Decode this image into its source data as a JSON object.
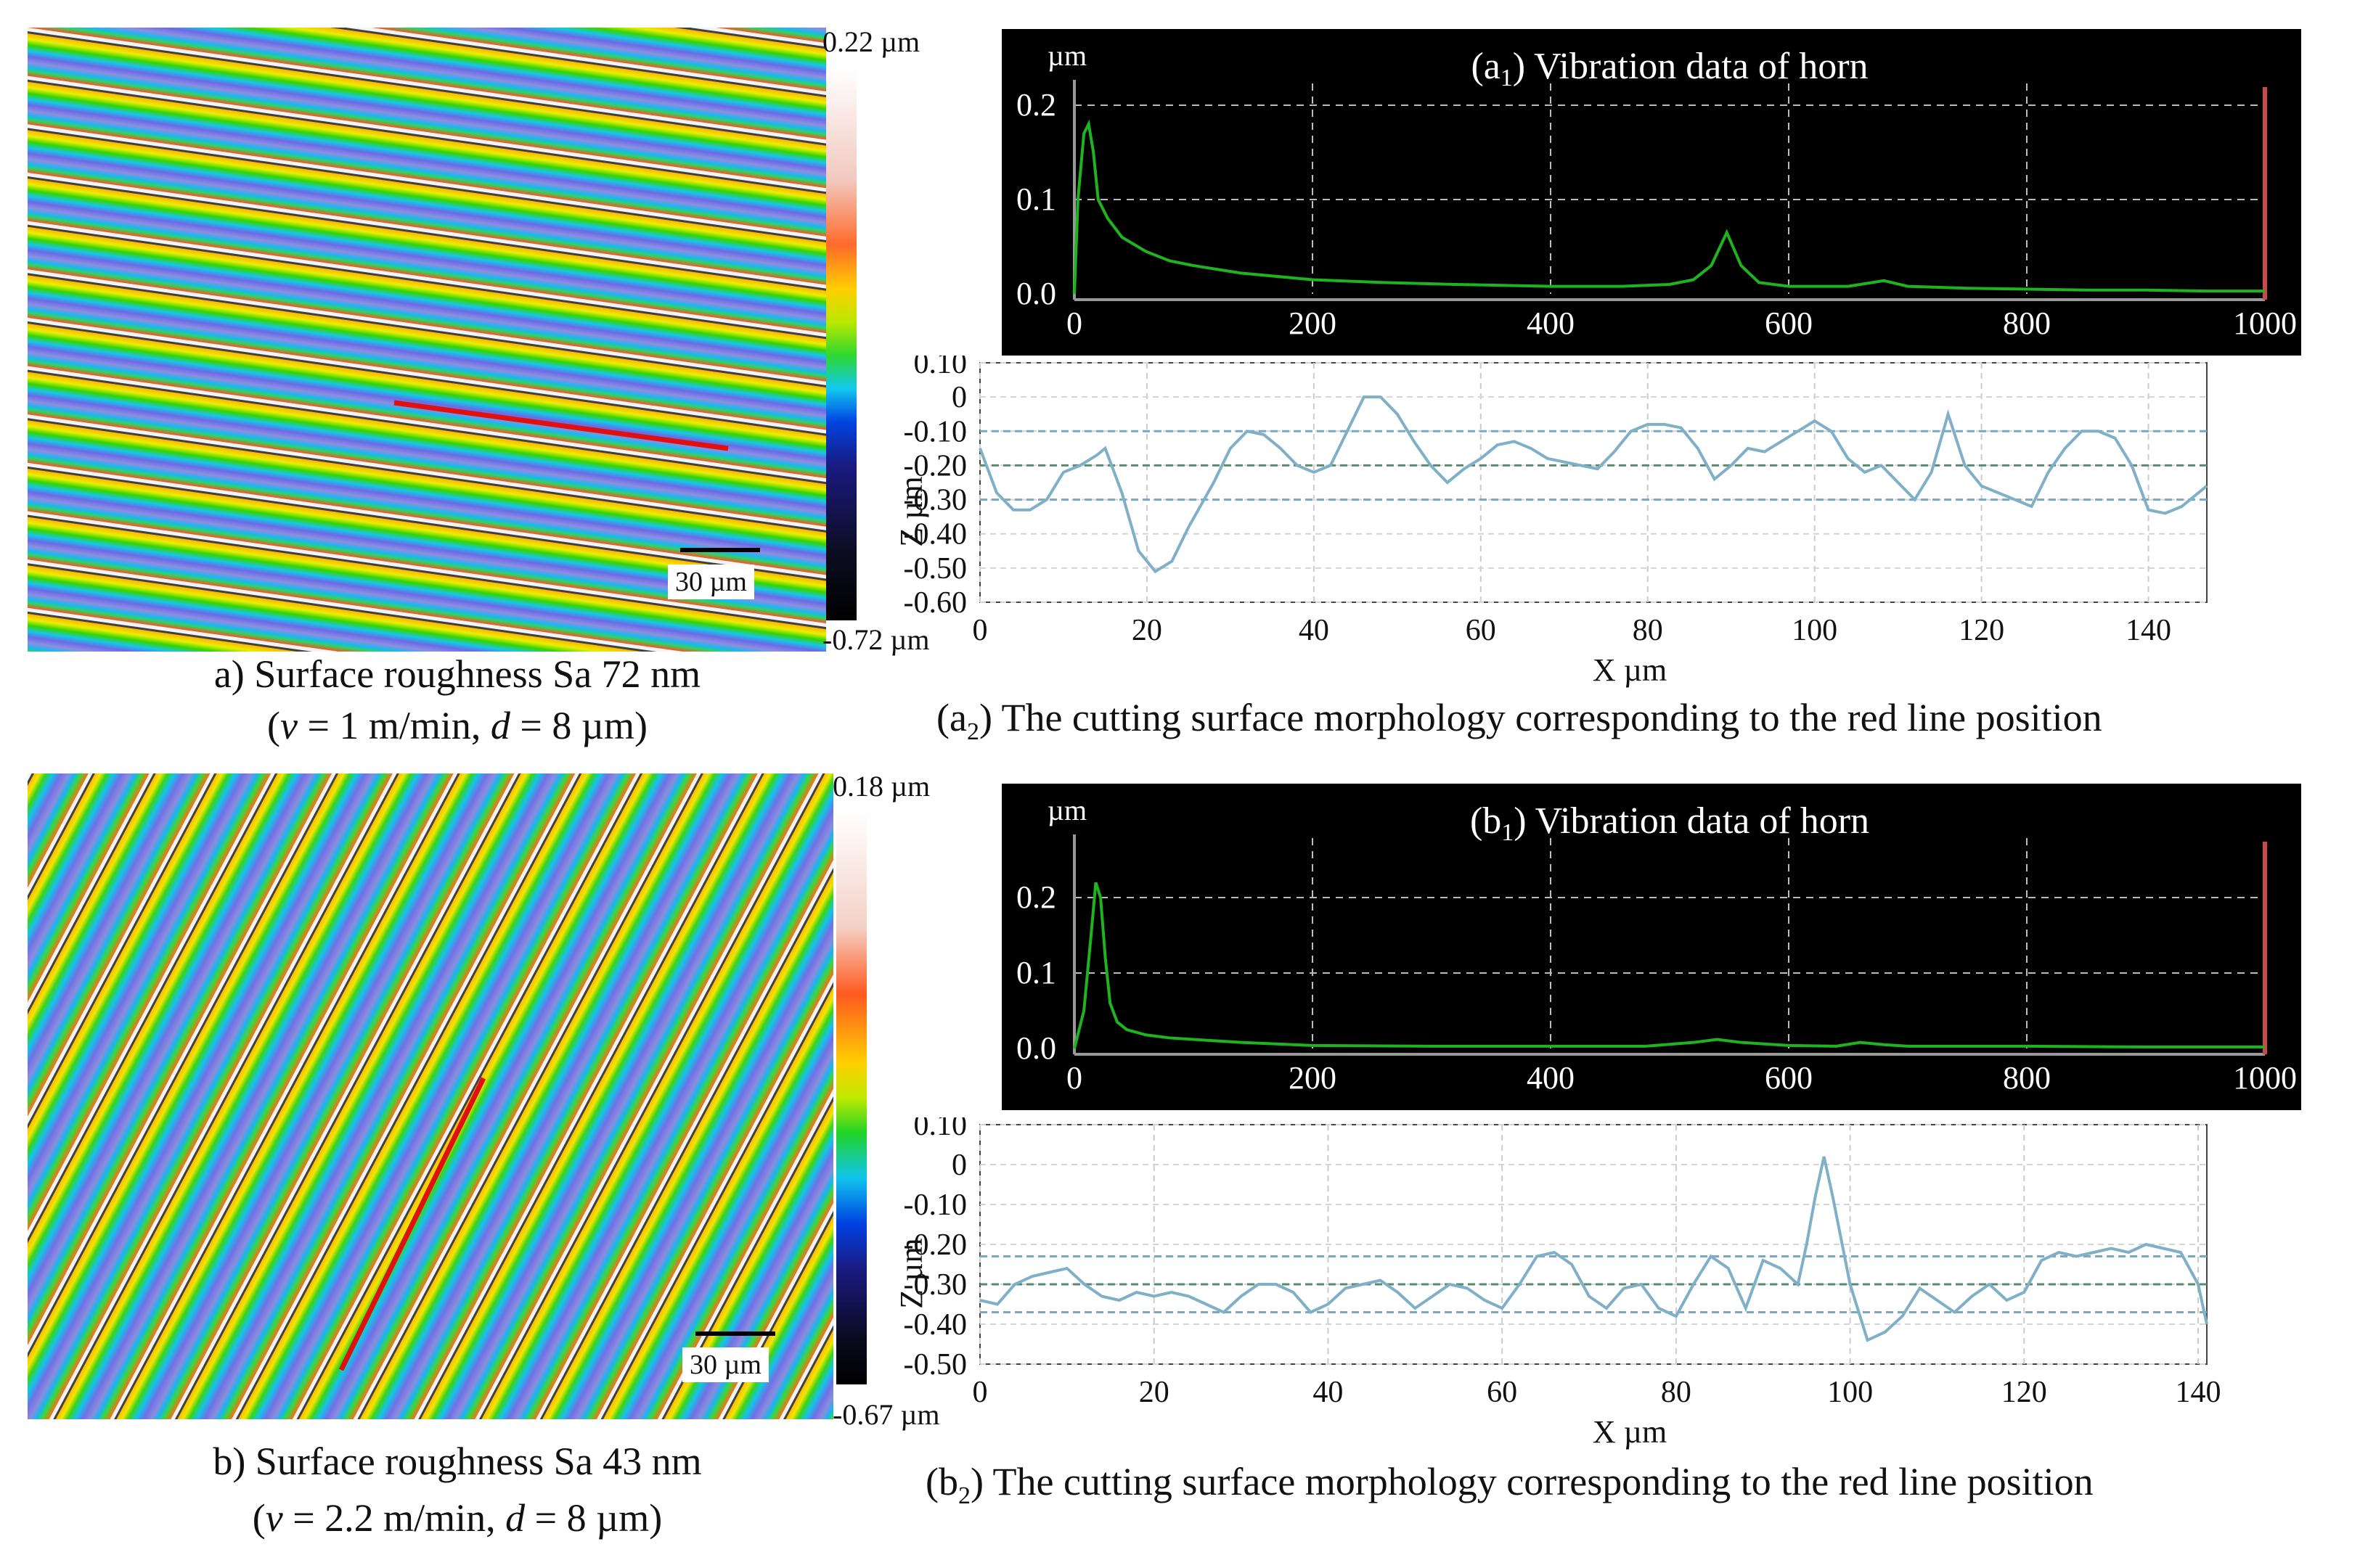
{
  "panel_a": {
    "colorbar_max": "0.22 µm",
    "colorbar_min": "-0.72 µm",
    "scale_label": "30 µm",
    "caption_line1": "a) Surface roughness Sa 72 nm",
    "caption_line2": "(v = 1 m/min, d = 8 µm)"
  },
  "panel_b": {
    "colorbar_max": "0.18 µm",
    "colorbar_min": "-0.67 µm",
    "scale_label": "30 µm",
    "caption_line1": "b) Surface roughness Sa 43 nm",
    "caption_line2": "(v = 2.2 m/min, d = 8 µm)"
  },
  "caption_a2": "(a2) The cutting surface morphology corresponding to the red line position",
  "caption_b2": "(b2) The cutting surface morphology corresponding to the red line position",
  "chart_data": [
    {
      "id": "a1",
      "type": "line",
      "title": "(a1) Vibration data of horn",
      "ylabel": "µm",
      "x_ticks": [
        "0",
        "200",
        "400",
        "600",
        "800",
        "1000"
      ],
      "y_ticks": [
        "0.0",
        "0.1",
        "0.2"
      ],
      "xlim": [
        0,
        1000
      ],
      "ylim": [
        0,
        0.2
      ],
      "background": "#000000",
      "line_color": "#1fb41f",
      "x": [
        0,
        3,
        8,
        12,
        16,
        20,
        28,
        40,
        60,
        80,
        100,
        140,
        200,
        260,
        320,
        400,
        460,
        500,
        520,
        535,
        548,
        560,
        575,
        600,
        650,
        680,
        700,
        750,
        800,
        850,
        900,
        950,
        1000
      ],
      "y": [
        0.0,
        0.1,
        0.17,
        0.18,
        0.15,
        0.1,
        0.08,
        0.06,
        0.045,
        0.035,
        0.03,
        0.022,
        0.015,
        0.012,
        0.01,
        0.008,
        0.008,
        0.01,
        0.015,
        0.03,
        0.065,
        0.03,
        0.012,
        0.008,
        0.008,
        0.014,
        0.008,
        0.006,
        0.005,
        0.004,
        0.004,
        0.003,
        0.003
      ]
    },
    {
      "id": "a2",
      "type": "line",
      "xlabel": "X µm",
      "ylabel": "Z µm",
      "x_ticks": [
        "0",
        "20",
        "40",
        "60",
        "80",
        "100",
        "120",
        "140"
      ],
      "y_ticks": [
        "0.10",
        "0",
        "-0.10",
        "-0.20",
        "-0.30",
        "-0.40",
        "-0.50",
        "-0.60"
      ],
      "xlim": [
        0,
        147
      ],
      "ylim": [
        -0.6,
        0.1
      ],
      "line_color": "#7fb0c8",
      "x": [
        0,
        2,
        4,
        6,
        8,
        10,
        12,
        14,
        15,
        17,
        19,
        21,
        23,
        25,
        28,
        30,
        32,
        34,
        36,
        38,
        40,
        42,
        44,
        46,
        48,
        50,
        52,
        54,
        56,
        58,
        60,
        62,
        64,
        66,
        68,
        70,
        72,
        74,
        76,
        78,
        80,
        82,
        84,
        86,
        88,
        90,
        92,
        94,
        96,
        98,
        100,
        102,
        104,
        106,
        108,
        110,
        112,
        114,
        116,
        118,
        120,
        122,
        124,
        126,
        128,
        130,
        132,
        134,
        136,
        138,
        140,
        142,
        144,
        147
      ],
      "y": [
        -0.15,
        -0.28,
        -0.33,
        -0.33,
        -0.3,
        -0.22,
        -0.2,
        -0.17,
        -0.15,
        -0.28,
        -0.45,
        -0.51,
        -0.48,
        -0.38,
        -0.25,
        -0.15,
        -0.1,
        -0.11,
        -0.15,
        -0.2,
        -0.22,
        -0.2,
        -0.1,
        0.0,
        0.0,
        -0.05,
        -0.13,
        -0.2,
        -0.25,
        -0.21,
        -0.18,
        -0.14,
        -0.13,
        -0.15,
        -0.18,
        -0.19,
        -0.2,
        -0.21,
        -0.16,
        -0.1,
        -0.08,
        -0.08,
        -0.09,
        -0.15,
        -0.24,
        -0.2,
        -0.15,
        -0.16,
        -0.13,
        -0.1,
        -0.07,
        -0.1,
        -0.18,
        -0.22,
        -0.2,
        -0.25,
        -0.3,
        -0.22,
        -0.05,
        -0.2,
        -0.26,
        -0.28,
        -0.3,
        -0.32,
        -0.22,
        -0.15,
        -0.1,
        -0.1,
        -0.12,
        -0.2,
        -0.33,
        -0.34,
        -0.32,
        -0.26
      ],
      "hlines": [
        -0.1,
        -0.2,
        -0.3
      ]
    },
    {
      "id": "b1",
      "type": "line",
      "title": "(b1) Vibration data of horn",
      "ylabel": "µm",
      "x_ticks": [
        "0",
        "200",
        "400",
        "600",
        "800",
        "1000"
      ],
      "y_ticks": [
        "0.0",
        "0.1",
        "0.2"
      ],
      "xlim": [
        0,
        1000
      ],
      "ylim": [
        0,
        0.25
      ],
      "background": "#000000",
      "line_color": "#1fb41f",
      "x": [
        0,
        8,
        14,
        18,
        22,
        26,
        30,
        36,
        44,
        60,
        80,
        100,
        140,
        200,
        300,
        400,
        480,
        520,
        540,
        560,
        600,
        640,
        660,
        680,
        700,
        760,
        800,
        900,
        1000
      ],
      "y": [
        0.0,
        0.05,
        0.15,
        0.22,
        0.2,
        0.12,
        0.06,
        0.035,
        0.025,
        0.018,
        0.014,
        0.012,
        0.008,
        0.004,
        0.003,
        0.003,
        0.003,
        0.008,
        0.012,
        0.008,
        0.004,
        0.003,
        0.008,
        0.005,
        0.003,
        0.003,
        0.003,
        0.002,
        0.002
      ]
    },
    {
      "id": "b2",
      "type": "line",
      "xlabel": "X µm",
      "ylabel": "Z µm",
      "x_ticks": [
        "0",
        "20",
        "40",
        "60",
        "80",
        "100",
        "120",
        "140"
      ],
      "y_ticks": [
        "0.10",
        "0",
        "-0.10",
        "-0.20",
        "-0.30",
        "-0.40",
        "-0.50"
      ],
      "xlim": [
        0,
        141
      ],
      "ylim": [
        -0.5,
        0.1
      ],
      "line_color": "#7fb0c8",
      "x": [
        0,
        2,
        4,
        6,
        8,
        10,
        12,
        14,
        16,
        18,
        20,
        22,
        24,
        26,
        28,
        30,
        32,
        34,
        36,
        38,
        40,
        42,
        44,
        46,
        48,
        50,
        52,
        54,
        56,
        58,
        60,
        62,
        64,
        66,
        68,
        70,
        72,
        74,
        76,
        78,
        80,
        82,
        84,
        86,
        88,
        90,
        92,
        94,
        95,
        96,
        97,
        98,
        100,
        102,
        104,
        106,
        108,
        110,
        112,
        114,
        116,
        118,
        120,
        122,
        124,
        126,
        128,
        130,
        132,
        134,
        136,
        138,
        140,
        141
      ],
      "y": [
        -0.34,
        -0.35,
        -0.3,
        -0.28,
        -0.27,
        -0.26,
        -0.3,
        -0.33,
        -0.34,
        -0.32,
        -0.33,
        -0.32,
        -0.33,
        -0.35,
        -0.37,
        -0.33,
        -0.3,
        -0.3,
        -0.32,
        -0.37,
        -0.35,
        -0.31,
        -0.3,
        -0.29,
        -0.32,
        -0.36,
        -0.33,
        -0.3,
        -0.31,
        -0.34,
        -0.36,
        -0.3,
        -0.23,
        -0.22,
        -0.25,
        -0.33,
        -0.36,
        -0.31,
        -0.3,
        -0.36,
        -0.38,
        -0.3,
        -0.23,
        -0.26,
        -0.36,
        -0.24,
        -0.26,
        -0.3,
        -0.2,
        -0.08,
        0.02,
        -0.08,
        -0.3,
        -0.44,
        -0.42,
        -0.38,
        -0.31,
        -0.34,
        -0.37,
        -0.33,
        -0.3,
        -0.34,
        -0.32,
        -0.24,
        -0.22,
        -0.23,
        -0.22,
        -0.21,
        -0.22,
        -0.2,
        -0.21,
        -0.22,
        -0.3,
        -0.4
      ],
      "hlines": [
        -0.23,
        -0.3,
        -0.37
      ]
    }
  ]
}
